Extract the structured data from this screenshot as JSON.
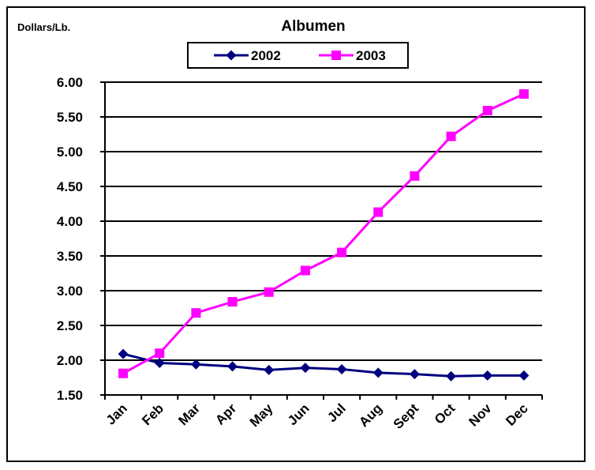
{
  "chart_data": {
    "type": "line",
    "title": "Albumen",
    "xlabel": "",
    "ylabel": "Dollars/Lb.",
    "categories": [
      "Jan",
      "Feb",
      "Mar",
      "Apr",
      "May",
      "Jun",
      "Jul",
      "Aug",
      "Sept",
      "Oct",
      "Nov",
      "Dec"
    ],
    "ylim": [
      1.5,
      6.0
    ],
    "yticks": [
      "1.50",
      "2.00",
      "2.50",
      "3.00",
      "3.50",
      "4.00",
      "4.50",
      "5.00",
      "5.50",
      "6.00"
    ],
    "grid": true,
    "legend_position": "top-center",
    "series": [
      {
        "name": "2002",
        "color": "#000080",
        "marker": "diamond",
        "values": [
          2.09,
          1.96,
          1.94,
          1.91,
          1.86,
          1.89,
          1.87,
          1.82,
          1.8,
          1.77,
          1.78,
          1.78
        ]
      },
      {
        "name": "2003",
        "color": "#ff00ff",
        "marker": "square",
        "values": [
          1.81,
          2.1,
          2.68,
          2.84,
          2.98,
          3.29,
          3.55,
          4.13,
          4.65,
          5.22,
          5.59,
          5.83
        ]
      }
    ]
  }
}
